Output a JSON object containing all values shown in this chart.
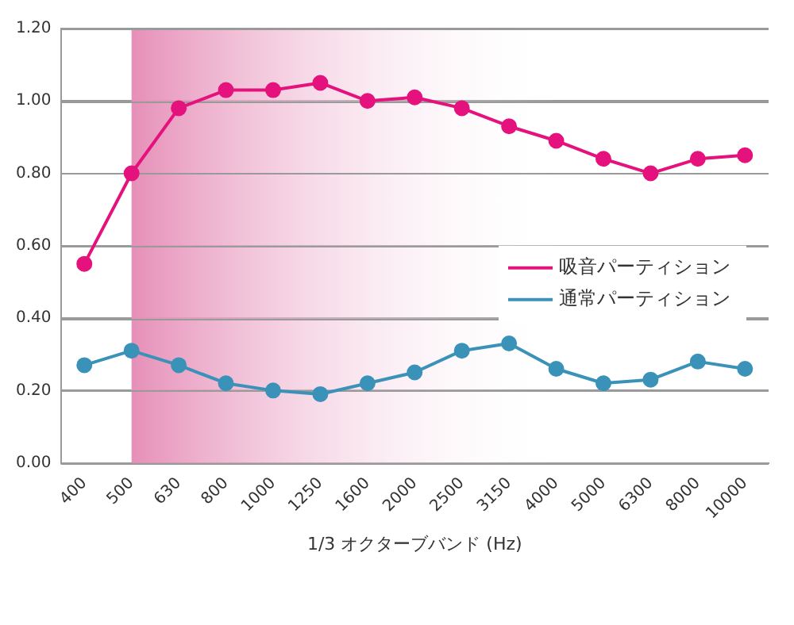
{
  "chart_data": {
    "type": "line",
    "xlabel": "1/3 オクターブバンド (Hz)",
    "categories": [
      "400",
      "500",
      "630",
      "800",
      "1000",
      "1250",
      "1600",
      "2000",
      "2500",
      "3150",
      "4000",
      "5000",
      "6300",
      "8000",
      "10000"
    ],
    "series": [
      {
        "name": "吸音パーティション",
        "color": "#e5127d",
        "values": [
          0.55,
          0.8,
          0.98,
          1.03,
          1.03,
          1.05,
          1.0,
          1.01,
          0.98,
          0.93,
          0.89,
          0.84,
          0.8,
          0.84,
          0.85
        ]
      },
      {
        "name": "通常パーティション",
        "color": "#3a92b8",
        "values": [
          0.27,
          0.31,
          0.27,
          0.22,
          0.2,
          0.19,
          0.22,
          0.25,
          0.31,
          0.33,
          0.26,
          0.22,
          0.23,
          0.28,
          0.26
        ]
      }
    ],
    "ylim": [
      0,
      1.2
    ],
    "yticks": [
      {
        "value": 0,
        "label": "0.00"
      },
      {
        "value": 0.2,
        "label": "0.20"
      },
      {
        "value": 0.4,
        "label": "0.40"
      },
      {
        "value": 0.6,
        "label": "0.60"
      },
      {
        "value": 0.8,
        "label": "0.80"
      },
      {
        "value": 1,
        "label": "1.00"
      },
      {
        "value": 1.2,
        "label": "1.20"
      }
    ],
    "bands": [
      {
        "axis": "x",
        "from": "500",
        "to": "4000",
        "color": "#e68fb8"
      }
    ],
    "grid": "y",
    "legend": "right",
    "marker": "circle",
    "line_style": "solid"
  }
}
